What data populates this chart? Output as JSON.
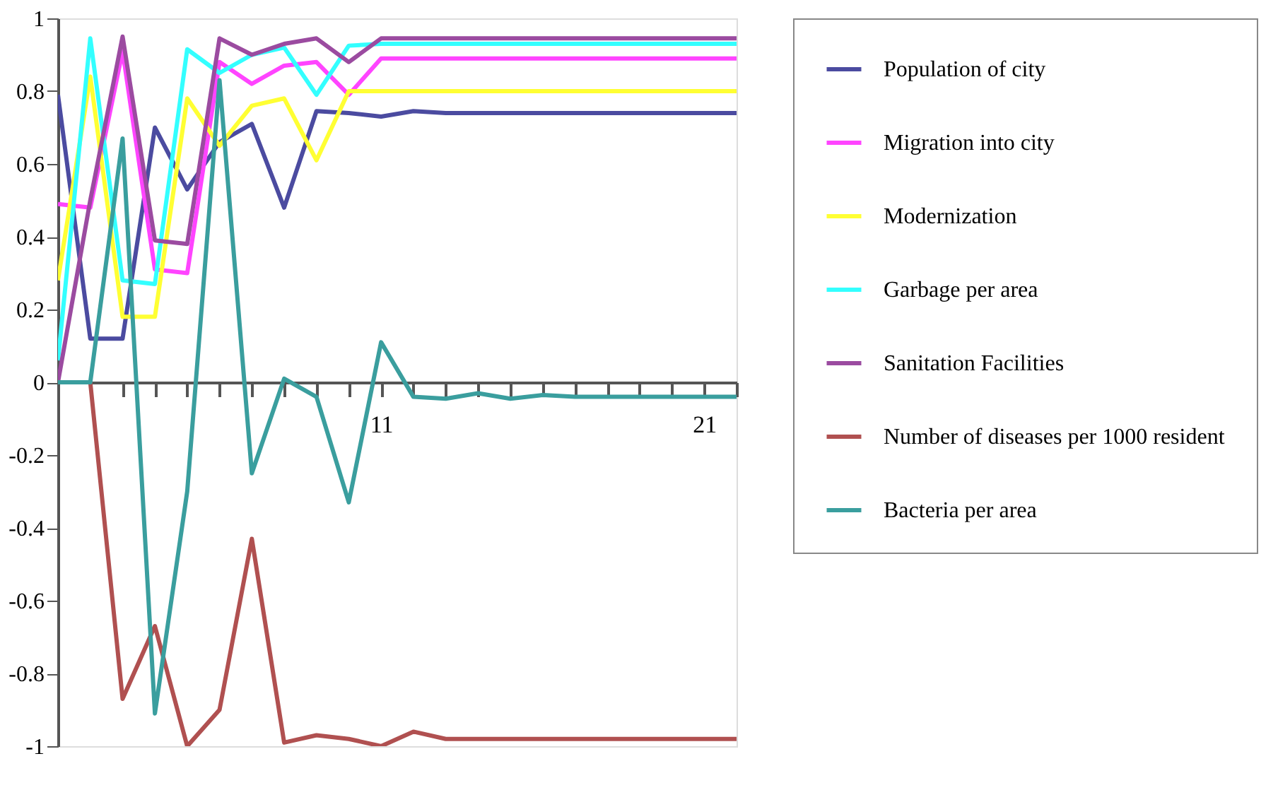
{
  "chart_data": {
    "type": "line",
    "x": [
      1,
      2,
      3,
      4,
      5,
      6,
      7,
      8,
      9,
      10,
      11,
      12,
      13,
      14,
      15,
      16,
      17,
      18,
      19,
      20,
      21,
      22
    ],
    "series": [
      {
        "name": "Population of city",
        "color": "#4b4ba0",
        "values": [
          0.79,
          0.12,
          0.12,
          0.7,
          0.53,
          0.66,
          0.71,
          0.48,
          0.745,
          0.74,
          0.73,
          0.745,
          0.74,
          0.74,
          0.74,
          0.74,
          0.74,
          0.74,
          0.74,
          0.74,
          0.74,
          0.74
        ]
      },
      {
        "name": "Migration into city",
        "color": "#ff44ff",
        "values": [
          0.49,
          0.48,
          0.91,
          0.31,
          0.3,
          0.88,
          0.82,
          0.87,
          0.88,
          0.79,
          0.89,
          0.89,
          0.89,
          0.89,
          0.89,
          0.89,
          0.89,
          0.89,
          0.89,
          0.89,
          0.89,
          0.89
        ]
      },
      {
        "name": "Modernization",
        "color": "#ffff33",
        "values": [
          0.28,
          0.84,
          0.18,
          0.18,
          0.78,
          0.65,
          0.76,
          0.78,
          0.61,
          0.8,
          0.8,
          0.8,
          0.8,
          0.8,
          0.8,
          0.8,
          0.8,
          0.8,
          0.8,
          0.8,
          0.8,
          0.8
        ]
      },
      {
        "name": "Garbage per area",
        "color": "#33ffff",
        "values": [
          0.06,
          0.945,
          0.28,
          0.27,
          0.915,
          0.85,
          0.9,
          0.92,
          0.79,
          0.925,
          0.93,
          0.93,
          0.93,
          0.93,
          0.93,
          0.93,
          0.93,
          0.93,
          0.93,
          0.93,
          0.93,
          0.93
        ]
      },
      {
        "name": "Sanitation Facilities",
        "color": "#9b4ba0",
        "values": [
          0,
          0.5,
          0.95,
          0.39,
          0.38,
          0.945,
          0.9,
          0.93,
          0.945,
          0.88,
          0.945,
          0.945,
          0.945,
          0.945,
          0.945,
          0.945,
          0.945,
          0.945,
          0.945,
          0.945,
          0.945,
          0.945
        ]
      },
      {
        "name": "Number of diseases per 1000 resident",
        "color": "#b05050",
        "values": [
          0,
          0,
          -0.87,
          -0.67,
          -1,
          -0.9,
          -0.43,
          -0.99,
          -0.97,
          -0.98,
          -1,
          -0.96,
          -0.98,
          -0.98,
          -0.98,
          -0.98,
          -0.98,
          -0.98,
          -0.98,
          -0.98,
          -0.98,
          -0.98
        ]
      },
      {
        "name": "Bacteria per area",
        "color": "#3a9e9e",
        "values": [
          0,
          0,
          0.67,
          -0.91,
          -0.3,
          0.83,
          -0.25,
          0.01,
          -0.04,
          -0.33,
          0.11,
          -0.04,
          -0.045,
          -0.03,
          -0.045,
          -0.035,
          -0.04,
          -0.04,
          -0.04,
          -0.04,
          -0.04,
          -0.04
        ]
      }
    ],
    "xlim": [
      1,
      22
    ],
    "xticks": [
      {
        "value": 1,
        "label": null
      },
      {
        "value": 2,
        "label": null
      },
      {
        "value": 3,
        "label": null
      },
      {
        "value": 4,
        "label": null
      },
      {
        "value": 5,
        "label": null
      },
      {
        "value": 6,
        "label": null
      },
      {
        "value": 7,
        "label": null
      },
      {
        "value": 8,
        "label": null
      },
      {
        "value": 9,
        "label": null
      },
      {
        "value": 10,
        "label": null
      },
      11,
      {
        "value": 12,
        "label": null
      },
      {
        "value": 13,
        "label": null
      },
      {
        "value": 14,
        "label": null
      },
      {
        "value": 15,
        "label": null
      },
      {
        "value": 16,
        "label": null
      },
      {
        "value": 17,
        "label": null
      },
      {
        "value": 18,
        "label": null
      },
      {
        "value": 19,
        "label": null
      },
      {
        "value": 20,
        "label": null
      },
      21,
      {
        "value": 22,
        "label": null
      }
    ],
    "ylim": [
      -1,
      1
    ],
    "yticks": [
      1,
      0.8,
      0.6,
      0.4,
      0.2,
      0,
      -0.2,
      -0.4,
      -0.6,
      -0.8,
      -1
    ],
    "grid": false,
    "legend": "right",
    "marker": "none",
    "line_style": "solid"
  }
}
